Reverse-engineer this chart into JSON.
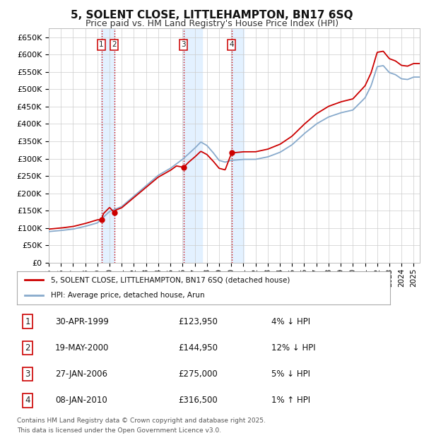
{
  "title": "5, SOLENT CLOSE, LITTLEHAMPTON, BN17 6SQ",
  "subtitle": "Price paid vs. HM Land Registry's House Price Index (HPI)",
  "ylim": [
    0,
    675000
  ],
  "yticks": [
    0,
    50000,
    100000,
    150000,
    200000,
    250000,
    300000,
    350000,
    400000,
    450000,
    500000,
    550000,
    600000,
    650000
  ],
  "ytick_labels": [
    "£0",
    "£50K",
    "£100K",
    "£150K",
    "£200K",
    "£250K",
    "£300K",
    "£350K",
    "£400K",
    "£450K",
    "£500K",
    "£550K",
    "£600K",
    "£650K"
  ],
  "sale_dates": [
    1999.33,
    2000.38,
    2006.08,
    2010.03
  ],
  "sale_prices": [
    123950,
    144950,
    275000,
    316500
  ],
  "sale_labels": [
    "1",
    "2",
    "3",
    "4"
  ],
  "sale_date_strs": [
    "30-APR-1999",
    "19-MAY-2000",
    "27-JAN-2006",
    "08-JAN-2010"
  ],
  "sale_price_strs": [
    "£123,950",
    "£144,950",
    "£275,000",
    "£316,500"
  ],
  "sale_hpi_strs": [
    "4% ↓ HPI",
    "12% ↓ HPI",
    "5% ↓ HPI",
    "1% ↑ HPI"
  ],
  "legend_line1": "5, SOLENT CLOSE, LITTLEHAMPTON, BN17 6SQ (detached house)",
  "legend_line2": "HPI: Average price, detached house, Arun",
  "footer1": "Contains HM Land Registry data © Crown copyright and database right 2025.",
  "footer2": "This data is licensed under the Open Government Licence v3.0.",
  "line_color_red": "#cc0000",
  "line_color_blue": "#88aacc",
  "bg_color": "#ffffff",
  "grid_color": "#cccccc",
  "shade_color": "#ddeeff"
}
